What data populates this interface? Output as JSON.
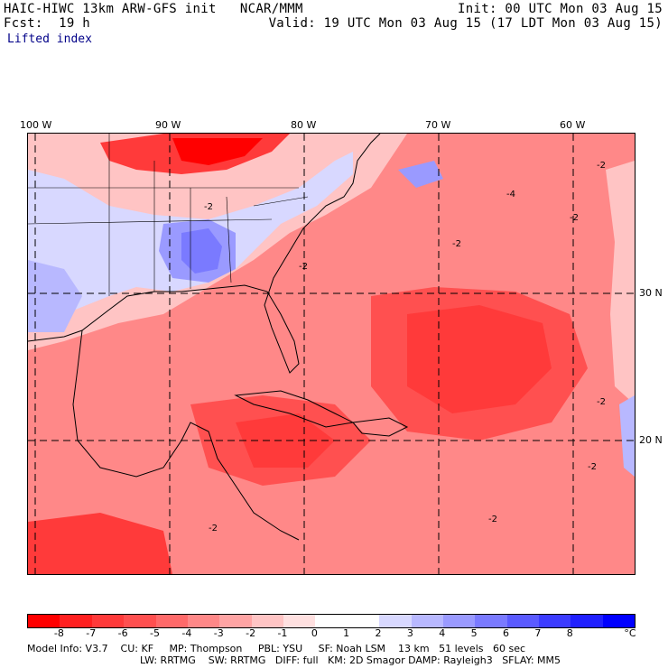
{
  "header": {
    "model_title": "HAIC-HIWC 13km ARW-GFS init   NCAR/MMM",
    "forecast": "Fcst:  19 h",
    "init": "Init: 00 UTC Mon 03 Aug 15",
    "valid": "Valid: 19 UTC Mon 03 Aug 15 (17 LDT Mon 03 Aug 15)",
    "field": "Lifted index"
  },
  "map": {
    "lon_labels": [
      "100 W",
      "90 W",
      "80 W",
      "70 W",
      "60 W"
    ],
    "lat_labels": [
      "30 N",
      "20 N"
    ],
    "contour_labels": [
      "-2",
      "-2",
      "-2",
      "-4",
      "-2",
      "-2",
      "-2",
      "-2",
      "-2",
      "-2"
    ]
  },
  "colorbar": {
    "colors": [
      "#ff0000",
      "#ff2020",
      "#ff3a3a",
      "#ff5050",
      "#ff6a6a",
      "#ff8888",
      "#ffa4a4",
      "#ffc4c4",
      "#ffe0e0",
      "#ffffff",
      "#ffffff",
      "#d8d8ff",
      "#b8b8ff",
      "#9a9aff",
      "#7a7aff",
      "#5a5aff",
      "#3c3cff",
      "#2020ff",
      "#0000ff"
    ],
    "labels": [
      "-8",
      "-7",
      "-6",
      "-5",
      "-4",
      "-3",
      "-2",
      "-1",
      "0",
      "1",
      "2",
      "3",
      "4",
      "5",
      "6",
      "7",
      "8",
      "°C"
    ],
    "unit": "°C"
  },
  "footer": {
    "line1": "Model Info: V3.7    CU: KF     MP: Thompson     PBL: YSU     SF: Noah LSM    13 km   51 levels   60 sec",
    "line2": "LW: RRTMG    SW: RRTMG   DIFF: full   KM: 2D Smagor DAMP: Rayleigh3   SFLAY: MM5"
  }
}
